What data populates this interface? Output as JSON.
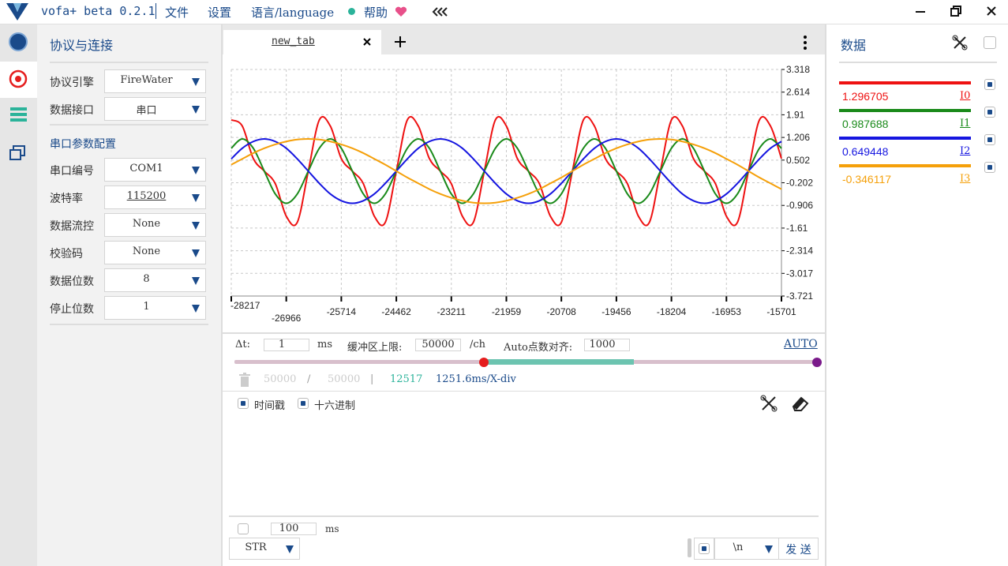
{
  "titlebar": {
    "app": "vofa+ beta 0.2.1",
    "menu": [
      "文件",
      "设置",
      "语言/language",
      "帮助"
    ]
  },
  "protocol_panel": {
    "title": "协议与连接",
    "fields": [
      {
        "label": "协议引擎",
        "value": "FireWater"
      },
      {
        "label": "数据接口",
        "value": "串口"
      }
    ],
    "serial_title": "串口参数配置",
    "serial_fields": [
      {
        "label": "串口编号",
        "value": "COM1"
      },
      {
        "label": "波特率",
        "value": "115200"
      },
      {
        "label": "数据流控",
        "value": "None"
      },
      {
        "label": "校验码",
        "value": "None"
      },
      {
        "label": "数据位数",
        "value": "8"
      },
      {
        "label": "停止位数",
        "value": "1"
      }
    ]
  },
  "tab": "new_tab",
  "chart_data": {
    "type": "line",
    "x_label": "ms",
    "xlim": [
      -28217,
      -15701
    ],
    "xticks": [
      -28217,
      -26966,
      -25714,
      -24462,
      -23211,
      -21959,
      -20708,
      -19456,
      -18204,
      -16953,
      -15701
    ],
    "ylim": [
      -3.721,
      3.318
    ],
    "yticks": [
      3.318,
      2.614,
      1.91,
      1.206,
      0.502,
      -0.202,
      -0.906,
      -1.61,
      -2.314,
      -3.017,
      -3.721
    ],
    "grid": true,
    "x": [
      -28217,
      -27967,
      -27716,
      -27466,
      -27216,
      -26966,
      -26715,
      -26465,
      -26214,
      -25964,
      -25714,
      -25463,
      -25213,
      -24963,
      -24713,
      -24462,
      -24212,
      -23962,
      -23711,
      -23461,
      -23211,
      -22960,
      -22710,
      -22460,
      -22209,
      -21959,
      -21709,
      -21458,
      -21208,
      -20958,
      -20708,
      -20457,
      -20207,
      -19956,
      -19706,
      -19456,
      -19205,
      -18955,
      -18705,
      -18455,
      -18204,
      -17954,
      -17704,
      -17453,
      -17203,
      -16953,
      -16702,
      -16452,
      -16202,
      -15951,
      -15701
    ],
    "series": [
      {
        "name": "I0",
        "color": "#ee1111",
        "values": [
          1.75,
          1.56,
          0.55,
          0.16,
          -0.23,
          -1.24,
          -1.43,
          0.16,
          1.75,
          1.56,
          0.55,
          0.16,
          -0.23,
          -1.24,
          -1.43,
          0.16,
          1.75,
          1.56,
          0.55,
          0.16,
          -0.23,
          -1.24,
          -1.43,
          0.16,
          1.75,
          1.56,
          0.55,
          0.16,
          -0.23,
          -1.24,
          -1.43,
          0.16,
          1.75,
          1.56,
          0.55,
          0.16,
          -0.23,
          -1.24,
          -1.43,
          0.16,
          1.75,
          1.56,
          0.55,
          0.16,
          -0.23,
          -1.24,
          -1.43,
          0.16,
          1.75,
          1.56,
          0.55
        ]
      },
      {
        "name": "I1",
        "color": "#1a8a1a",
        "values": [
          0.87,
          1.16,
          0.87,
          0.16,
          -0.55,
          -0.84,
          -0.55,
          0.16,
          0.87,
          1.16,
          0.87,
          0.16,
          -0.55,
          -0.84,
          -0.55,
          0.16,
          0.87,
          1.16,
          0.87,
          0.16,
          -0.55,
          -0.84,
          -0.55,
          0.16,
          0.87,
          1.16,
          0.87,
          0.16,
          -0.55,
          -0.84,
          -0.55,
          0.16,
          0.87,
          1.16,
          0.87,
          0.16,
          -0.55,
          -0.84,
          -0.55,
          0.16,
          0.87,
          1.16,
          0.87,
          0.16,
          -0.55,
          -0.84,
          -0.55,
          0.16,
          0.87,
          1.16,
          0.87
        ]
      },
      {
        "name": "I2",
        "color": "#1515e0",
        "values": [
          0.54,
          0.87,
          1.08,
          1.16,
          1.08,
          0.87,
          0.54,
          0.16,
          -0.22,
          -0.55,
          -0.76,
          -0.84,
          -0.76,
          -0.55,
          -0.22,
          0.16,
          0.54,
          0.87,
          1.08,
          1.16,
          1.08,
          0.87,
          0.54,
          0.16,
          -0.22,
          -0.55,
          -0.76,
          -0.84,
          -0.76,
          -0.55,
          -0.22,
          0.16,
          0.54,
          0.87,
          1.08,
          1.16,
          1.08,
          0.87,
          0.54,
          0.16,
          -0.22,
          -0.55,
          -0.76,
          -0.84,
          -0.76,
          -0.55,
          -0.22,
          0.16,
          0.54,
          0.87,
          1.08
        ]
      },
      {
        "name": "I3",
        "color": "#f5a00a",
        "values": [
          0.36,
          0.54,
          0.72,
          0.87,
          0.99,
          1.08,
          1.14,
          1.16,
          1.14,
          1.08,
          0.99,
          0.87,
          0.72,
          0.54,
          0.36,
          0.16,
          -0.04,
          -0.22,
          -0.4,
          -0.55,
          -0.67,
          -0.76,
          -0.82,
          -0.84,
          -0.82,
          -0.76,
          -0.67,
          -0.55,
          -0.4,
          -0.22,
          -0.04,
          0.16,
          0.36,
          0.54,
          0.72,
          0.87,
          0.99,
          1.08,
          1.14,
          1.16,
          1.14,
          1.08,
          0.99,
          0.87,
          0.72,
          0.54,
          0.36,
          0.16,
          -0.04,
          -0.22,
          -0.4
        ]
      }
    ]
  },
  "waveform_controls": {
    "dt_label": "Δt:",
    "dt": "1",
    "dt_unit": "ms",
    "buffer_label": "缓冲区上限:",
    "buffer": "50000",
    "buffer_unit": "/ch",
    "auto_label": "Auto点数对齐:",
    "auto": "1000",
    "auto_button": "AUTO"
  },
  "stats": {
    "used": "50000",
    "sep": "/",
    "total": "50000",
    "sep2": "|",
    "count": "12517",
    "rate": "1251.6ms/X-div"
  },
  "log_options": [
    "时间戳",
    "十六进制"
  ],
  "send": {
    "interval": "100",
    "interval_unit": "ms",
    "format": "STR",
    "ending": "\\n",
    "button": "发 送"
  },
  "data_panel": {
    "title": "数据",
    "channels": [
      {
        "value": "1.296705",
        "name": "I0",
        "color": "#ee1111"
      },
      {
        "value": "0.987688",
        "name": "I1",
        "color": "#1a8a1a"
      },
      {
        "value": "0.649448",
        "name": "I2",
        "color": "#1515e0"
      },
      {
        "value": "-0.346117",
        "name": "I3",
        "color": "#f5a00a"
      }
    ]
  }
}
